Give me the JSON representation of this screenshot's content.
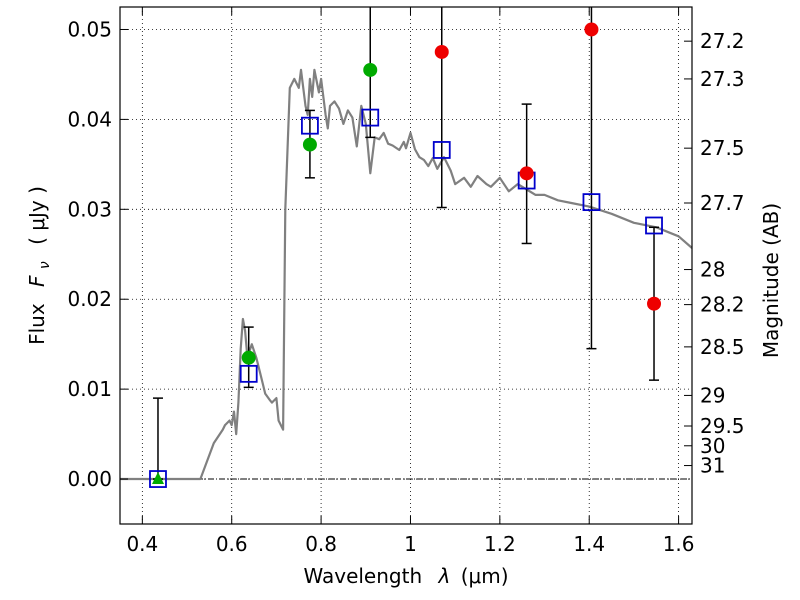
{
  "chart_data": {
    "type": "scatter",
    "xlabel_prefix": "Wavelength",
    "xlabel_symbol": "λ",
    "xlabel_unit": "(μm)",
    "ylabel_prefix": "Flux",
    "ylabel_symbol": "F",
    "ylabel_sub": "ν",
    "ylabel_unit": "( μJy )",
    "y2label": "Magnitude (AB)",
    "xlim": [
      0.35,
      1.63
    ],
    "ylim": [
      -0.005,
      0.0525
    ],
    "grid": true,
    "x_ticks": [
      0.4,
      0.6,
      0.8,
      1.0,
      1.2,
      1.4,
      1.6
    ],
    "x_tick_labels": [
      "0.4",
      "0.6",
      "0.8",
      "1",
      "1.2",
      "1.4",
      "1.6"
    ],
    "y_ticks": [
      0.0,
      0.01,
      0.02,
      0.03,
      0.04,
      0.05
    ],
    "y_tick_labels": [
      "0.00",
      "0.01",
      "0.02",
      "0.03",
      "0.04",
      "0.05"
    ],
    "y2_ticks": [
      {
        "label": "27.2",
        "flux": 0.0487
      },
      {
        "label": "27.3",
        "flux": 0.0445
      },
      {
        "label": "27.5",
        "flux": 0.0368
      },
      {
        "label": "27.7",
        "flux": 0.0307
      },
      {
        "label": "28",
        "flux": 0.0233
      },
      {
        "label": "28.2",
        "flux": 0.0194
      },
      {
        "label": "28.5",
        "flux": 0.0147
      },
      {
        "label": "29",
        "flux": 0.0093
      },
      {
        "label": "29.5",
        "flux": 0.0059
      },
      {
        "label": "30",
        "flux": 0.0037
      },
      {
        "label": "31",
        "flux": 0.0015
      }
    ],
    "colors": {
      "model": "#808080",
      "detection": "#00aa00",
      "nondetection": "#ee0000",
      "model_flux": "#0000cc",
      "errorbar": "#000000",
      "zero_line": "#000000"
    },
    "model_sed": {
      "x": [
        0.35,
        0.53,
        0.56,
        0.58,
        0.585,
        0.595,
        0.6,
        0.605,
        0.61,
        0.615,
        0.62,
        0.625,
        0.63,
        0.635,
        0.645,
        0.655,
        0.665,
        0.675,
        0.685,
        0.69,
        0.7,
        0.705,
        0.715,
        0.72,
        0.73,
        0.74,
        0.75,
        0.755,
        0.765,
        0.77,
        0.775,
        0.78,
        0.785,
        0.795,
        0.8,
        0.81,
        0.815,
        0.82,
        0.83,
        0.84,
        0.85,
        0.86,
        0.87,
        0.88,
        0.89,
        0.9,
        0.91,
        0.92,
        0.93,
        0.94,
        0.95,
        0.96,
        0.975,
        0.985,
        0.99,
        1.0,
        1.01,
        1.02,
        1.03,
        1.04,
        1.05,
        1.06,
        1.075,
        1.09,
        1.1,
        1.12,
        1.135,
        1.15,
        1.17,
        1.18,
        1.2,
        1.22,
        1.24,
        1.26,
        1.28,
        1.3,
        1.33,
        1.36,
        1.4,
        1.45,
        1.5,
        1.55,
        1.6,
        1.63
      ],
      "y": [
        0.0,
        0.0,
        0.004,
        0.0055,
        0.006,
        0.0065,
        0.006,
        0.0075,
        0.005,
        0.0085,
        0.0145,
        0.0178,
        0.0165,
        0.0135,
        0.015,
        0.0135,
        0.0115,
        0.0095,
        0.0088,
        0.0085,
        0.009,
        0.0065,
        0.0055,
        0.03,
        0.0435,
        0.0445,
        0.0435,
        0.0455,
        0.0415,
        0.0405,
        0.0445,
        0.0425,
        0.0455,
        0.043,
        0.0445,
        0.0405,
        0.039,
        0.0415,
        0.042,
        0.0412,
        0.0395,
        0.041,
        0.0402,
        0.037,
        0.0415,
        0.0395,
        0.034,
        0.038,
        0.0378,
        0.0385,
        0.0373,
        0.0371,
        0.0366,
        0.0375,
        0.0368,
        0.0385,
        0.0367,
        0.0358,
        0.0355,
        0.0348,
        0.0357,
        0.0345,
        0.0358,
        0.0343,
        0.0328,
        0.0335,
        0.0325,
        0.0337,
        0.0328,
        0.0325,
        0.0335,
        0.032,
        0.0328,
        0.0322,
        0.0316,
        0.0316,
        0.031,
        0.0307,
        0.0303,
        0.0295,
        0.0285,
        0.028,
        0.027,
        0.0257
      ]
    },
    "model_fluxes": {
      "x": [
        0.435,
        0.638,
        0.775,
        0.91,
        1.07,
        1.26,
        1.405,
        1.545
      ],
      "y": [
        0.0,
        0.0117,
        0.0393,
        0.0402,
        0.0366,
        0.0332,
        0.0308,
        0.0282
      ]
    },
    "detections": {
      "x": [
        0.638,
        0.775,
        0.91
      ],
      "y": [
        0.0135,
        0.0372,
        0.0455
      ]
    },
    "nondetections": {
      "x": [
        1.07,
        1.26,
        1.405,
        1.545
      ],
      "y": [
        0.0475,
        0.034,
        0.05,
        0.0195
      ]
    },
    "upper_limit_marker": {
      "x": 0.435,
      "y": 0.0
    }
  }
}
